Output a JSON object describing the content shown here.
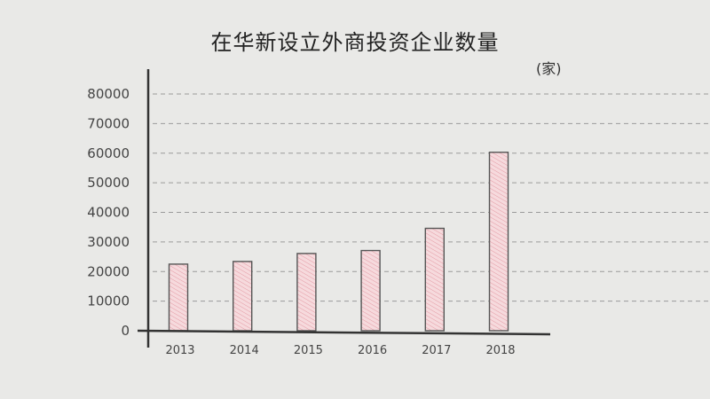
{
  "chart_data": {
    "type": "bar",
    "title": "在华新设立外商投资企业数量",
    "unit": "(家)",
    "categories": [
      "2013",
      "2014",
      "2015",
      "2016",
      "2017",
      "2018"
    ],
    "values": [
      22500,
      23400,
      26100,
      27100,
      34600,
      60300
    ],
    "ylim": [
      0,
      80000
    ],
    "yticks": [
      "0",
      "10000",
      "20000",
      "30000",
      "40000",
      "50000",
      "60000",
      "70000",
      "80000"
    ],
    "grid": true,
    "bar_color": "#f4c9cf",
    "hatch_color": "#e08f9a"
  }
}
